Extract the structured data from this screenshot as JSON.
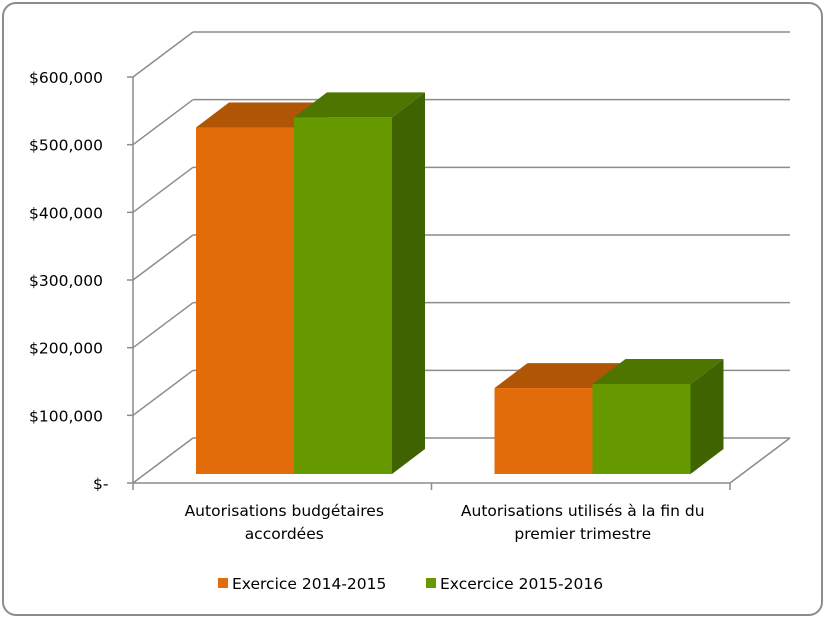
{
  "chart_data": {
    "type": "bar",
    "style": "3d-clustered-column",
    "categories": [
      "Autorisations budgétaires accordées",
      "Autorisations utilisés à la fin du premier trimestre"
    ],
    "category_lines": [
      [
        "Autorisations budgétaires",
        "accordées"
      ],
      [
        "Autorisations utilisés à la fin du",
        "premier trimestre"
      ]
    ],
    "series": [
      {
        "name": "Exercice 2014-2015",
        "values": [
          512000,
          127000
        ],
        "color": "#e36c0a",
        "top_color": "#b05405"
      },
      {
        "name": "Excercice 2015-2016",
        "values": [
          527000,
          133000
        ],
        "color": "#669900",
        "top_color": "#4d7500",
        "side_color": "#3f6300"
      }
    ],
    "y_ticks": [
      "$-",
      "$100,000",
      "$200,000",
      "$300,000",
      "$400,000",
      "$500,000",
      "$600,000"
    ],
    "ylim": [
      0,
      600000
    ],
    "y_step": 100000,
    "grid": true,
    "legend": "bottom",
    "title": "",
    "xlabel": "",
    "ylabel": ""
  }
}
